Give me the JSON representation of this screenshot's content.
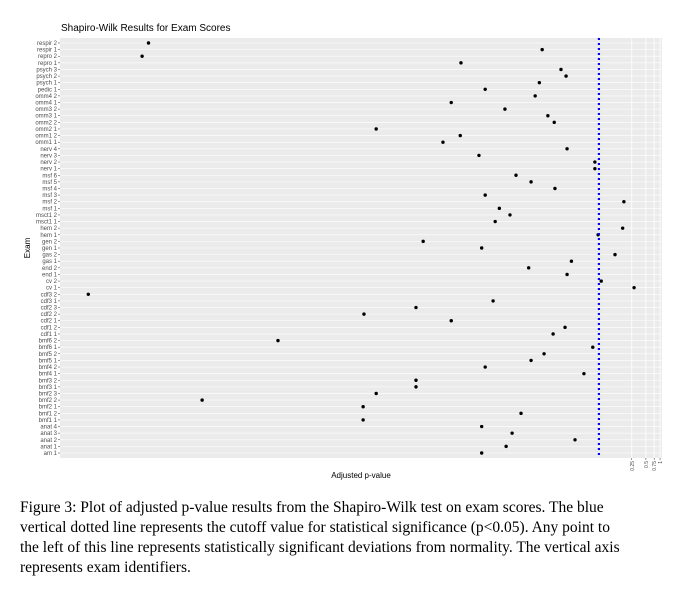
{
  "chart_data": {
    "type": "dot",
    "title": "Shapiro-Wilk Results for Exam Scores",
    "x_label": "Adjusted p-value",
    "y_label": "Exam",
    "categories": [
      "respir 2",
      "respir 1",
      "repro 2",
      "repro 1",
      "psych 3",
      "psych 2",
      "psych 1",
      "pedic 1",
      "omm4 2",
      "omm4 1",
      "omm3 2",
      "omm3 1",
      "omm2 2",
      "omm2 1",
      "omm1 2",
      "omm1 1",
      "nerv 4",
      "nerv 3",
      "nerv 2",
      "nerv 1",
      "msf 6",
      "msf 5",
      "msf 4",
      "msf 3",
      "msf 2",
      "msf 1",
      "msct1 2",
      "msct1 1",
      "hem 2",
      "hem 1",
      "gen 2",
      "gen 1",
      "gas 2",
      "gas 1",
      "end 2",
      "end 1",
      "cv 2",
      "cv 1",
      "cdf3 2",
      "cdf3 1",
      "cdf2 3",
      "cdf2 2",
      "cdf2 1",
      "cdf1 2",
      "cdf1 1",
      "bmf6 2",
      "bmf6 1",
      "bmf5 2",
      "bmf5 1",
      "bmf4 2",
      "bmf4 1",
      "bmf3 2",
      "bmf3 1",
      "bmf2 3",
      "bmf2 2",
      "bmf2 1",
      "bmf1 2",
      "bmf1 1",
      "anat 4",
      "anat 3",
      "anat 2",
      "anat 1",
      "am 1"
    ],
    "values": [
      1.3e-11,
      0.0031,
      9.5e-12,
      5.8e-05,
      0.0078,
      0.01,
      0.0027,
      0.00019,
      0.0022,
      3.6e-05,
      0.0005,
      0.0041,
      0.0056,
      9.1e-07,
      5.6e-05,
      2.4e-05,
      0.0105,
      0.00014,
      0.041,
      0.041,
      0.00086,
      0.0018,
      0.0058,
      0.00019,
      0.17,
      0.00038,
      0.00064,
      0.00031,
      0.16,
      0.048,
      9.1e-06,
      0.00016,
      0.11,
      0.013,
      0.0016,
      0.0105,
      0.056,
      0.28,
      6.8e-13,
      0.00028,
      6.4e-06,
      5e-07,
      3.6e-05,
      0.0095,
      0.0053,
      7.4e-09,
      0.037,
      0.0034,
      0.0018,
      0.00019,
      0.024,
      6.4e-06,
      6.4e-06,
      9.1e-07,
      1.8e-10,
      4.8e-07,
      0.0011,
      4.8e-07,
      0.00016,
      0.00071,
      0.0155,
      0.00053,
      0.00016
    ],
    "color": "#000000",
    "cutoff": 0.05,
    "cutoff_color": "#0000ff",
    "xlim": [
      1.7e-13,
      1.1
    ],
    "xticks": [
      0.25,
      0.5,
      0.75,
      1
    ],
    "log_x": true,
    "grid": true
  },
  "caption": [
    "Figure 3: Plot of adjusted p-value results from the Shapiro-Wilk test on exam scores. The blue",
    "vertical dotted line represents the cutoff value for statistical significance (p<0.05).  Any point to",
    "the left of this line represents statistically significant deviations from normality. The vertical axis",
    "represents exam identifiers."
  ]
}
